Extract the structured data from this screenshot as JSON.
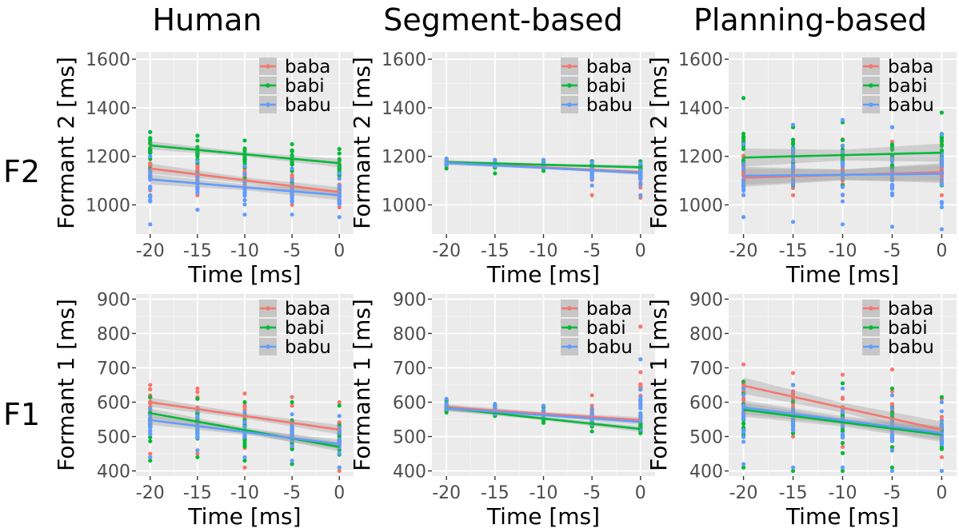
{
  "column_titles": [
    "Human",
    "Segment-based",
    "Planning-based"
  ],
  "row_labels": [
    "F2",
    "F1"
  ],
  "colors": {
    "baba": "#f8766d",
    "babi": "#00ba38",
    "babu": "#619cff",
    "panel_bg": "#ebebeb",
    "grid": "#ffffff",
    "axis_text": "#4d4d4d"
  },
  "chart_data": [
    {
      "type": "scatter",
      "column": "Human",
      "row": "F2",
      "xlabel": "Time [ms]",
      "ylabel": "Formant 2 [ms]",
      "xlim": [
        -21.5,
        1.5
      ],
      "ylim": [
        880,
        1630
      ],
      "xticks": [
        -20,
        -15,
        -10,
        -5,
        0
      ],
      "yticks": [
        1000,
        1200,
        1400,
        1600
      ],
      "legend_position": "top-right",
      "grid": true,
      "series": [
        {
          "name": "baba",
          "color": "#f8766d",
          "x": [
            -20,
            -15,
            -10,
            -5,
            0
          ],
          "y_spread": [
            [
              1060,
              1250
            ],
            [
              1040,
              1230
            ],
            [
              1020,
              1210
            ],
            [
              1000,
              1190
            ],
            [
              990,
              1170
            ]
          ],
          "fit": [
            1150,
            1053
          ],
          "band": 12
        },
        {
          "name": "babi",
          "color": "#00ba38",
          "x": [
            -20,
            -15,
            -10,
            -5,
            0
          ],
          "y_spread": [
            [
              1150,
              1300
            ],
            [
              1130,
              1285
            ],
            [
              1110,
              1265
            ],
            [
              1090,
              1250
            ],
            [
              1060,
              1230
            ]
          ],
          "fit": [
            1245,
            1172
          ],
          "band": 10
        },
        {
          "name": "babu",
          "color": "#619cff",
          "x": [
            -20,
            -15,
            -10,
            -5,
            0
          ],
          "y_spread": [
            [
              920,
              1200
            ],
            [
              980,
              1180
            ],
            [
              960,
              1160
            ],
            [
              960,
              1150
            ],
            [
              950,
              1130
            ]
          ],
          "fit": [
            1105,
            1040
          ],
          "band": 12
        }
      ]
    },
    {
      "type": "scatter",
      "column": "Segment-based",
      "row": "F2",
      "xlabel": "Time [ms]",
      "ylabel": "Formant 2 [ms]",
      "xlim": [
        -21.5,
        1.5
      ],
      "ylim": [
        880,
        1630
      ],
      "xticks": [
        -20,
        -15,
        -10,
        -5,
        0
      ],
      "yticks": [
        1000,
        1200,
        1400,
        1600
      ],
      "legend_position": "top-right",
      "grid": true,
      "series": [
        {
          "name": "baba",
          "color": "#f8766d",
          "x": [
            -20,
            -15,
            -10,
            -5,
            0
          ],
          "y_spread": [
            [
              1160,
              1190
            ],
            [
              1160,
              1185
            ],
            [
              1150,
              1185
            ],
            [
              1040,
              1180
            ],
            [
              1030,
              1175
            ]
          ],
          "fit": [
            1175,
            1135
          ],
          "band": 5
        },
        {
          "name": "babi",
          "color": "#00ba38",
          "x": [
            -20,
            -15,
            -10,
            -5,
            0
          ],
          "y_spread": [
            [
              1150,
              1190
            ],
            [
              1130,
              1185
            ],
            [
              1140,
              1185
            ],
            [
              1130,
              1180
            ],
            [
              1120,
              1180
            ]
          ],
          "fit": [
            1176,
            1155
          ],
          "band": 5
        },
        {
          "name": "babu",
          "color": "#619cff",
          "x": [
            -20,
            -15,
            -10,
            -5,
            0
          ],
          "y_spread": [
            [
              1165,
              1190
            ],
            [
              1160,
              1185
            ],
            [
              1155,
              1185
            ],
            [
              1080,
              1175
            ],
            [
              1040,
              1170
            ]
          ],
          "fit": [
            1173,
            1132
          ],
          "band": 5
        }
      ]
    },
    {
      "type": "scatter",
      "column": "Planning-based",
      "row": "F2",
      "xlabel": "Time [ms]",
      "ylabel": "Formant 2 [ms]",
      "xlim": [
        -21.5,
        1.5
      ],
      "ylim": [
        880,
        1630
      ],
      "xticks": [
        -20,
        -15,
        -10,
        -5,
        0
      ],
      "yticks": [
        1000,
        1200,
        1400,
        1600
      ],
      "legend_position": "top-right",
      "grid": true,
      "series": [
        {
          "name": "baba",
          "color": "#f8766d",
          "x": [
            -20,
            -15,
            -10,
            -5,
            0
          ],
          "y_spread": [
            [
              1040,
              1260
            ],
            [
              1040,
              1260
            ],
            [
              1040,
              1270
            ],
            [
              1040,
              1260
            ],
            [
              1040,
              1260
            ]
          ],
          "fit": [
            1112,
            1135
          ],
          "band": 22
        },
        {
          "name": "babi",
          "color": "#00ba38",
          "x": [
            -20,
            -15,
            -10,
            -5,
            0
          ],
          "y_spread": [
            [
              1080,
              1440
            ],
            [
              1080,
              1320
            ],
            [
              1080,
              1340
            ],
            [
              1080,
              1320
            ],
            [
              1080,
              1380
            ]
          ],
          "fit": [
            1195,
            1215
          ],
          "band": 22
        },
        {
          "name": "babu",
          "color": "#619cff",
          "x": [
            -20,
            -15,
            -10,
            -5,
            0
          ],
          "y_spread": [
            [
              950,
              1250
            ],
            [
              930,
              1330
            ],
            [
              920,
              1350
            ],
            [
              910,
              1320
            ],
            [
              900,
              1290
            ]
          ],
          "fit": [
            1120,
            1128
          ],
          "band": 22
        }
      ]
    },
    {
      "type": "scatter",
      "column": "Human",
      "row": "F1",
      "xlabel": "Time [ms]",
      "ylabel": "Formant 1 [ms]",
      "xlim": [
        -21.5,
        1.5
      ],
      "ylim": [
        385,
        915
      ],
      "xticks": [
        -20,
        -15,
        -10,
        -5,
        0
      ],
      "yticks": [
        400,
        500,
        600,
        700,
        800,
        900
      ],
      "legend_position": "top-right",
      "grid": true,
      "series": [
        {
          "name": "baba",
          "color": "#f8766d",
          "x": [
            -20,
            -15,
            -10,
            -5,
            0
          ],
          "y_spread": [
            [
              450,
              650
            ],
            [
              450,
              640
            ],
            [
              410,
              625
            ],
            [
              420,
              615
            ],
            [
              400,
              600
            ]
          ],
          "fit": [
            600,
            520
          ],
          "band": 8
        },
        {
          "name": "babi",
          "color": "#00ba38",
          "x": [
            -20,
            -15,
            -10,
            -5,
            0
          ],
          "y_spread": [
            [
              430,
              615
            ],
            [
              440,
              610
            ],
            [
              430,
              600
            ],
            [
              420,
              600
            ],
            [
              410,
              590
            ]
          ],
          "fit": [
            568,
            470
          ],
          "band": 8
        },
        {
          "name": "babu",
          "color": "#619cff",
          "x": [
            -20,
            -15,
            -10,
            -5,
            0
          ],
          "y_spread": [
            [
              440,
              580
            ],
            [
              460,
              575
            ],
            [
              440,
              570
            ],
            [
              430,
              565
            ],
            [
              410,
              560
            ]
          ],
          "fit": [
            548,
            478
          ],
          "band": 8
        }
      ]
    },
    {
      "type": "scatter",
      "column": "Segment-based",
      "row": "F1",
      "xlabel": "Time [ms]",
      "ylabel": "Formant 1 [ms]",
      "xlim": [
        -21.5,
        1.5
      ],
      "ylim": [
        385,
        915
      ],
      "xticks": [
        -20,
        -15,
        -10,
        -5,
        0
      ],
      "yticks": [
        400,
        500,
        600,
        700,
        800,
        900
      ],
      "legend_position": "top-right",
      "grid": true,
      "series": [
        {
          "name": "baba",
          "color": "#f8766d",
          "x": [
            -20,
            -15,
            -10,
            -5,
            0
          ],
          "y_spread": [
            [
              575,
              600
            ],
            [
              560,
              590
            ],
            [
              555,
              590
            ],
            [
              540,
              620
            ],
            [
              520,
              820
            ]
          ],
          "fit": [
            585,
            548
          ],
          "band": 5
        },
        {
          "name": "babi",
          "color": "#00ba38",
          "x": [
            -20,
            -15,
            -10,
            -5,
            0
          ],
          "y_spread": [
            [
              570,
              605
            ],
            [
              560,
              590
            ],
            [
              540,
              585
            ],
            [
              515,
              580
            ],
            [
              510,
              560
            ]
          ],
          "fit": [
            583,
            522
          ],
          "band": 5
        },
        {
          "name": "babu",
          "color": "#619cff",
          "x": [
            -20,
            -15,
            -10,
            -5,
            0
          ],
          "y_spread": [
            [
              580,
              610
            ],
            [
              565,
              595
            ],
            [
              555,
              590
            ],
            [
              535,
              580
            ],
            [
              520,
              725
            ]
          ],
          "fit": [
            582,
            543
          ],
          "band": 5
        }
      ]
    },
    {
      "type": "scatter",
      "column": "Planning-based",
      "row": "F1",
      "xlabel": "Time [ms]",
      "ylabel": "Formant 1 [ms]",
      "xlim": [
        -21.5,
        1.5
      ],
      "ylim": [
        385,
        915
      ],
      "xticks": [
        -20,
        -15,
        -10,
        -5,
        0
      ],
      "yticks": [
        400,
        500,
        600,
        700,
        800,
        900
      ],
      "legend_position": "top-right",
      "grid": true,
      "series": [
        {
          "name": "baba",
          "color": "#f8766d",
          "x": [
            -20,
            -15,
            -10,
            -5,
            0
          ],
          "y_spread": [
            [
              520,
              710
            ],
            [
              500,
              685
            ],
            [
              470,
              680
            ],
            [
              470,
              695
            ],
            [
              440,
              610
            ]
          ],
          "fit": [
            648,
            520
          ],
          "band": 14
        },
        {
          "name": "babi",
          "color": "#00ba38",
          "x": [
            -20,
            -15,
            -10,
            -5,
            0
          ],
          "y_spread": [
            [
              410,
              660
            ],
            [
              400,
              650
            ],
            [
              400,
              655
            ],
            [
              410,
              640
            ],
            [
              400,
              615
            ]
          ],
          "fit": [
            578,
            505
          ],
          "band": 12
        },
        {
          "name": "babu",
          "color": "#619cff",
          "x": [
            -20,
            -15,
            -10,
            -5,
            0
          ],
          "y_spread": [
            [
              420,
              640
            ],
            [
              410,
              650
            ],
            [
              410,
              640
            ],
            [
              400,
              620
            ],
            [
              400,
              600
            ]
          ],
          "fit": [
            585,
            510
          ],
          "band": 12
        }
      ]
    }
  ]
}
